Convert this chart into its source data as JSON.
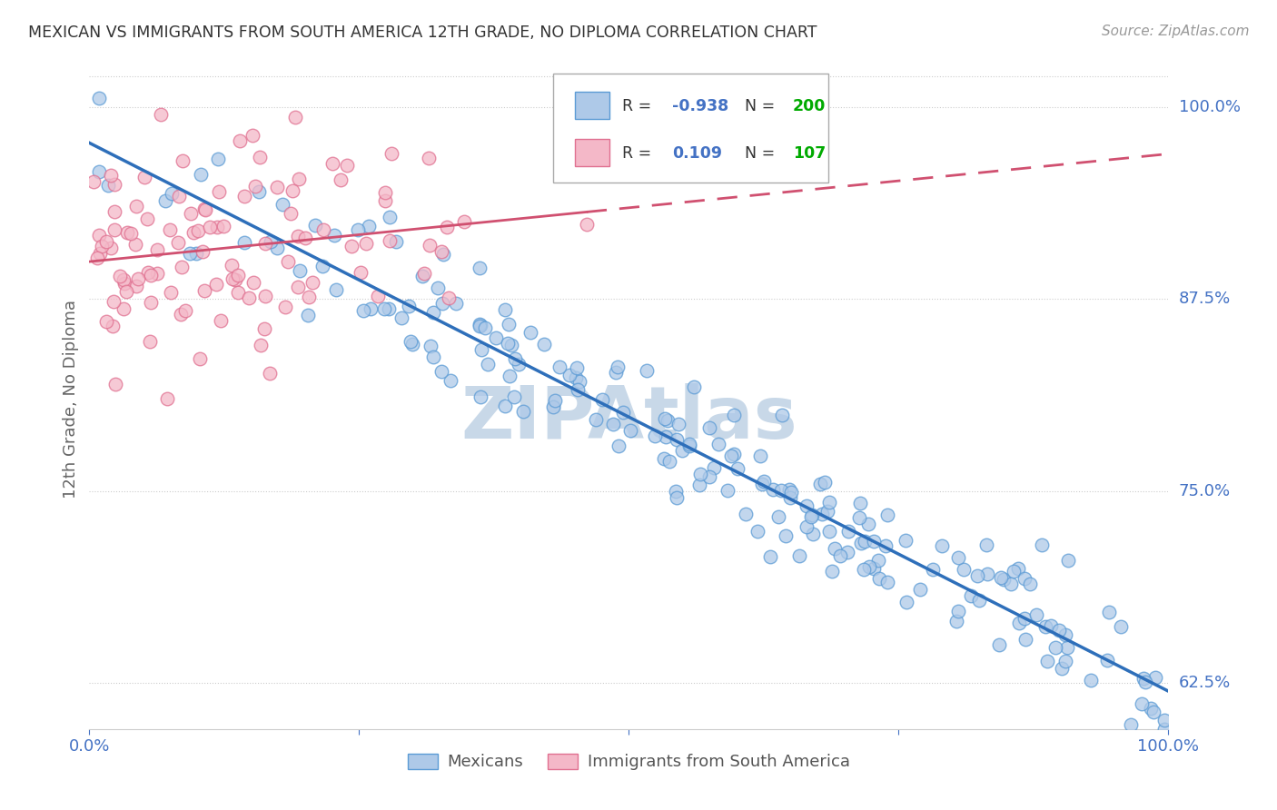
{
  "title": "MEXICAN VS IMMIGRANTS FROM SOUTH AMERICA 12TH GRADE, NO DIPLOMA CORRELATION CHART",
  "source": "Source: ZipAtlas.com",
  "ylabel": "12th Grade, No Diploma",
  "ytick_labels": [
    "100.0%",
    "87.5%",
    "75.0%",
    "62.5%"
  ],
  "legend_labels": [
    "Mexicans",
    "Immigrants from South America"
  ],
  "blue_R": "-0.938",
  "blue_N": "200",
  "pink_R": "0.109",
  "pink_N": "107",
  "blue_color": "#aec9e8",
  "pink_color": "#f4b8c8",
  "blue_edge_color": "#5b9bd5",
  "pink_edge_color": "#e07090",
  "blue_line_color": "#2e6fba",
  "pink_line_color": "#d05070",
  "watermark": "ZIPAtlas",
  "watermark_color": "#c8d8e8",
  "background_color": "#ffffff",
  "title_color": "#333333",
  "axis_label_color": "#4472c4",
  "legend_R_color": "#4472c4",
  "legend_N_color": "#00aa00",
  "seed": 42,
  "blue_N_int": 200,
  "pink_N_int": 107,
  "xmin": 0.0,
  "xmax": 1.0,
  "ymin": 0.595,
  "ymax": 1.025,
  "ytick_vals": [
    1.0,
    0.875,
    0.75,
    0.625
  ]
}
